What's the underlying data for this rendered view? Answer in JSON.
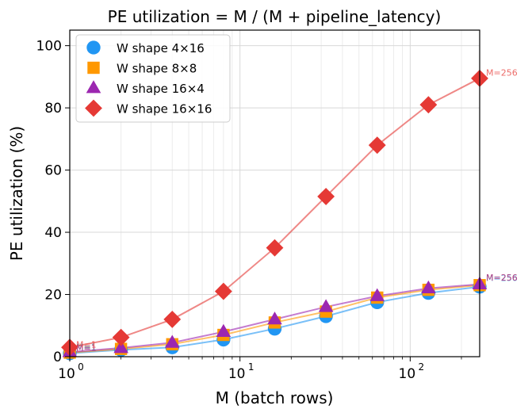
{
  "chart_data": {
    "type": "line",
    "title": "PE utilization  =  M / (M + pipeline_latency)",
    "xlabel": "M (batch rows)",
    "ylabel": "PE utilization (%)",
    "xscale": "log",
    "xlim": [
      1,
      256
    ],
    "ylim": [
      0,
      105
    ],
    "grid": true,
    "legend_position": "top-left",
    "x": [
      1,
      2,
      4,
      8,
      16,
      32,
      64,
      128,
      256
    ],
    "x_ticks": [
      {
        "value": 1,
        "base": "10",
        "exp": "0"
      },
      {
        "value": 10,
        "base": "10",
        "exp": "1"
      },
      {
        "value": 100,
        "base": "10",
        "exp": "2"
      }
    ],
    "y_ticks": [
      {
        "value": 0,
        "label": "0"
      },
      {
        "value": 20,
        "label": "20"
      },
      {
        "value": 40,
        "label": "40"
      },
      {
        "value": 60,
        "label": "60"
      },
      {
        "value": 80,
        "label": "80"
      },
      {
        "value": 100,
        "label": "100"
      }
    ],
    "series": [
      {
        "name": "W shape 4×16",
        "marker": "circle",
        "color": "#2196f3",
        "values": [
          1.1,
          2.2,
          3.0,
          5.5,
          9.0,
          13.0,
          17.5,
          20.5,
          22.5
        ],
        "annotation_start": "M=1",
        "annotation_end": "M=256"
      },
      {
        "name": "W shape 8×8",
        "marker": "square",
        "color": "#ff9800",
        "values": [
          1.3,
          2.5,
          4.0,
          7.0,
          11.0,
          14.5,
          19.0,
          21.5,
          23.0
        ],
        "annotation_start": "M=1",
        "annotation_end": "M=256"
      },
      {
        "name": "W shape 16×4",
        "marker": "triangle",
        "color": "#9c27b0",
        "values": [
          1.5,
          2.8,
          4.5,
          8.0,
          12.0,
          16.0,
          19.5,
          22.0,
          23.3
        ],
        "annotation_start": "M=1",
        "annotation_end": "M=256"
      },
      {
        "name": "W shape 16×16",
        "marker": "diamond",
        "color": "#e53935",
        "values": [
          3.0,
          6.2,
          12.0,
          21.0,
          35.0,
          51.5,
          68.0,
          81.0,
          89.5
        ],
        "annotation_start": "M=1",
        "annotation_end": "M=256"
      }
    ]
  }
}
